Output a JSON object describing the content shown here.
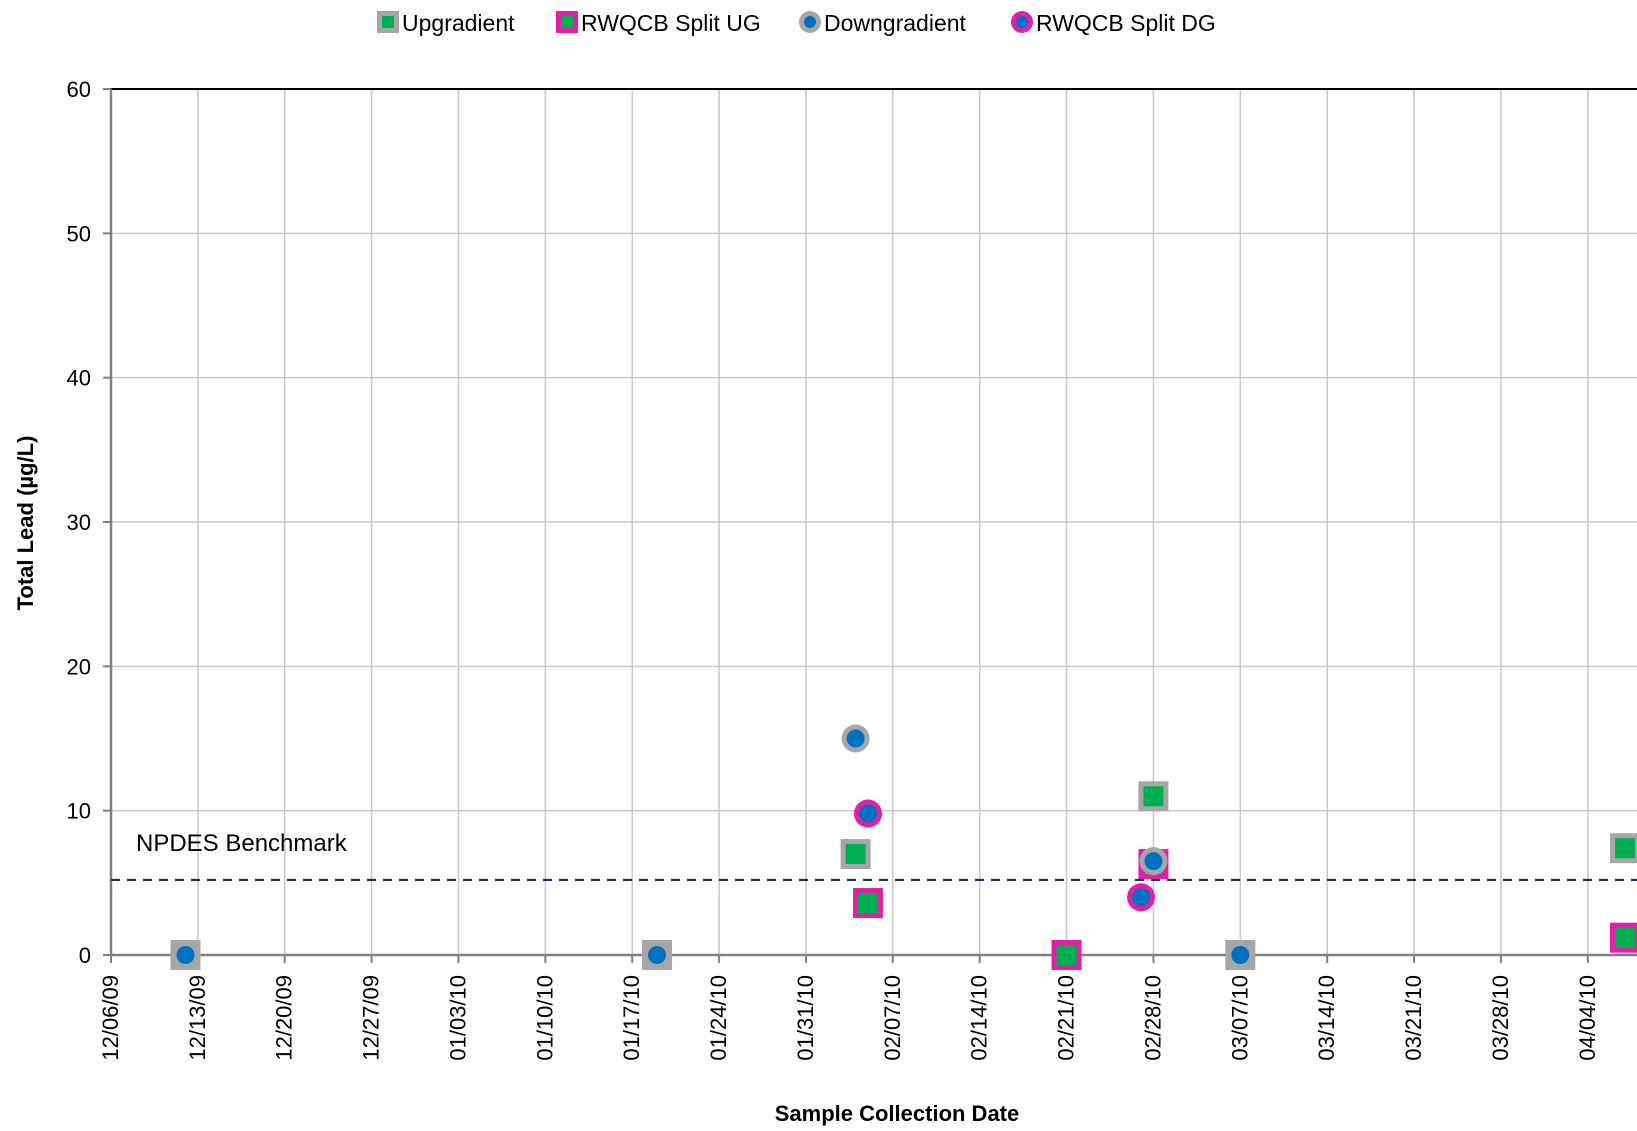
{
  "chart_data": {
    "type": "scatter",
    "title": "",
    "xlabel": "Sample Collection Date",
    "ylabel": "Total Lead (µg/L)",
    "ylim": [
      0,
      60
    ],
    "yticks": [
      "0",
      "10",
      "20",
      "30",
      "40",
      "50",
      "60"
    ],
    "xlim": [
      "2009-12-06",
      "2010-04-07"
    ],
    "xtick_labels": [
      "12/06/09",
      "12/13/09",
      "12/20/09",
      "12/27/09",
      "01/03/10",
      "01/10/10",
      "01/17/10",
      "01/24/10",
      "01/31/10",
      "02/07/10",
      "02/14/10",
      "02/21/10",
      "02/28/10",
      "03/07/10",
      "03/14/10",
      "03/21/10",
      "03/28/10",
      "04/04/10"
    ],
    "grid": true,
    "legend_position": "top",
    "benchmark": {
      "label": "NPDES Benchmark",
      "value": 5.2,
      "color": "#1f2d5a"
    },
    "series": [
      {
        "name": "Upgradient",
        "marker": "square",
        "fill": "#00b050",
        "edge": "#a6a6a6",
        "points": [
          [
            "2009-12-12",
            0
          ],
          [
            "2010-01-19",
            0
          ],
          [
            "2010-02-04",
            7.0
          ],
          [
            "2010-02-21",
            0
          ],
          [
            "2010-02-28",
            11.0
          ],
          [
            "2010-03-07",
            0
          ],
          [
            "2010-04-07",
            7.4
          ]
        ]
      },
      {
        "name": "RWQCB Split UG",
        "marker": "square",
        "fill": "#00b050",
        "edge": "#e020a8",
        "points": [
          [
            "2010-02-05",
            3.6
          ],
          [
            "2010-02-21",
            0
          ],
          [
            "2010-02-28",
            6.3
          ],
          [
            "2010-04-07",
            1.2
          ]
        ]
      },
      {
        "name": "Downgradient",
        "marker": "circle",
        "fill": "#0070c0",
        "edge": "#a6a6a6",
        "points": [
          [
            "2009-12-12",
            0
          ],
          [
            "2010-01-19",
            0
          ],
          [
            "2010-02-04",
            15.0
          ],
          [
            "2010-02-05",
            9.8
          ],
          [
            "2010-02-28",
            6.5
          ],
          [
            "2010-03-07",
            0
          ]
        ]
      },
      {
        "name": "RWQCB Split DG",
        "marker": "circle",
        "fill": "#0070c0",
        "edge": "#e020a8",
        "points": [
          [
            "2010-02-05",
            9.8
          ],
          [
            "2010-02-27",
            4.0
          ]
        ]
      }
    ]
  }
}
